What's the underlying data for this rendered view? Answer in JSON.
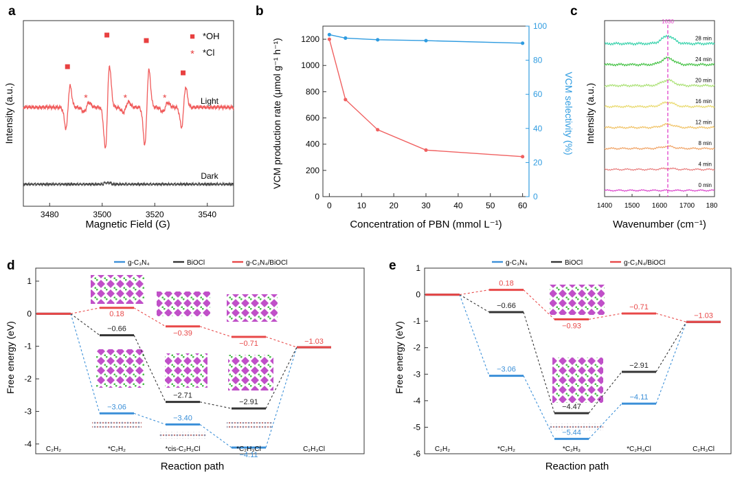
{
  "panels": {
    "a": {
      "letter": "a",
      "xlabel": "Magnetic Field (G)",
      "ylabel": "Intensity (a.u.)",
      "xlim": [
        3470,
        3550
      ],
      "xticks": [
        "3480",
        "3500",
        "3520",
        "3540"
      ],
      "trace_labels": [
        "Light",
        "Dark"
      ],
      "legend": [
        {
          "marker": "■",
          "label": "*OH"
        },
        {
          "marker": "*",
          "label": "*Cl"
        }
      ],
      "colors": {
        "light": "#f05a5a",
        "dark": "#444444"
      }
    },
    "b": {
      "letter": "b",
      "xlabel": "Concentration of PBN (mmol L⁻¹)",
      "ylabel": "VCM production rate (μmol g⁻¹ h⁻¹)",
      "y2label": "VCM selectivity (%)",
      "colors": {
        "rate": "#f06060",
        "selectivity": "#2e9be0"
      }
    },
    "c": {
      "letter": "c",
      "xlabel": "Wavenumber (cm⁻¹)",
      "ylabel": "Intensity (a.u.)",
      "peak_label": "1630",
      "xticks": [
        "1400",
        "1500",
        "1600",
        "1700",
        "180"
      ]
    },
    "d": {
      "letter": "d",
      "ylabel": "Free energy (eV)",
      "xlabel": "Reaction path",
      "path_labels": [
        "C₂H₂",
        "*C₂H₂",
        "*cis-C₂H₂Cl",
        "*C₂H₃Cl",
        "C₂H₃Cl"
      ]
    },
    "e": {
      "letter": "e",
      "ylabel": "Free energy (eV)",
      "xlabel": "Reaction path",
      "path_labels": [
        "C₂H₂",
        "*C₂H₂",
        "*C₂H₃",
        "*C₂H₃Cl",
        "C₂H₃Cl"
      ]
    }
  },
  "chart_data": [
    {
      "type": "line",
      "panel": "a",
      "series": [
        {
          "name": "Light"
        },
        {
          "name": "Dark"
        }
      ],
      "oh_peaks": [
        3487,
        3502,
        3517,
        3531
      ],
      "cl_peaks": [
        3494,
        3509,
        3524
      ]
    },
    {
      "type": "line",
      "panel": "b",
      "x": [
        0,
        5,
        15,
        30,
        60
      ],
      "series": [
        {
          "axis": "left",
          "values": [
            1200,
            740,
            510,
            355,
            305
          ]
        },
        {
          "axis": "right",
          "values": [
            95,
            93,
            92,
            91.5,
            90
          ]
        }
      ],
      "xlim": [
        -2,
        62
      ],
      "ylim": [
        0,
        1300
      ],
      "y2lim": [
        0,
        100
      ],
      "xticks": [
        0,
        10,
        20,
        30,
        40,
        50,
        60
      ],
      "yticks": [
        0,
        200,
        400,
        600,
        800,
        1000,
        1200
      ],
      "y2ticks": [
        0,
        20,
        40,
        60,
        80,
        100
      ]
    },
    {
      "type": "line",
      "panel": "c",
      "series": [
        {
          "name": "0 min",
          "color": "#d838c8"
        },
        {
          "name": "4 min",
          "color": "#e87878"
        },
        {
          "name": "8 min",
          "color": "#f0a060"
        },
        {
          "name": "12 min",
          "color": "#f0c060"
        },
        {
          "name": "16 min",
          "color": "#e8d868"
        },
        {
          "name": "20 min",
          "color": "#a8e070"
        },
        {
          "name": "24 min",
          "color": "#40c040"
        },
        {
          "name": "28 min",
          "color": "#30d0a8"
        }
      ],
      "xlim": [
        1400,
        1800
      ],
      "peak": 1630
    },
    {
      "type": "line",
      "panel": "d",
      "legend": [
        "g-C₃N₄",
        "BiOCl",
        "g-C₃N₄/BiOCl"
      ],
      "ylim": [
        -4.3,
        1.4
      ],
      "yticks": [
        1,
        0,
        -1,
        -2,
        -3,
        -4
      ],
      "series": [
        {
          "name": "g-C₃N₄",
          "color": "#3a8fd8",
          "values": [
            0,
            -3.06,
            -3.4,
            -4.11,
            -1.03
          ],
          "labels": [
            "",
            "−3.06",
            "−3.40",
            "−4.11",
            ""
          ]
        },
        {
          "name": "BiOCl",
          "color": "#333333",
          "values": [
            0,
            -0.66,
            -2.71,
            -2.91,
            -1.03
          ],
          "labels": [
            "",
            "−0.66",
            "−2.71",
            "−2.91",
            ""
          ]
        },
        {
          "name": "g-C₃N₄/BiOCl",
          "color": "#e84848",
          "values": [
            0,
            0.18,
            -0.39,
            -0.71,
            -1.03
          ],
          "labels": [
            "",
            "0.18",
            "−0.39",
            "−0.71",
            "−1.03"
          ]
        }
      ]
    },
    {
      "type": "line",
      "panel": "e",
      "legend": [
        "g-C₃N₄",
        "BiOCl",
        "g-C₃N₄/BiOCl"
      ],
      "ylim": [
        -6,
        1
      ],
      "yticks": [
        1,
        0,
        -1,
        -2,
        -3,
        -4,
        -5,
        -6
      ],
      "series": [
        {
          "name": "g-C₃N₄",
          "color": "#3a8fd8",
          "values": [
            0,
            -3.06,
            -5.44,
            -4.11,
            -1.03
          ],
          "labels": [
            "",
            "−3.06",
            "−5.44",
            "−4.11",
            ""
          ]
        },
        {
          "name": "BiOCl",
          "color": "#333333",
          "values": [
            0,
            -0.66,
            -4.47,
            -2.91,
            -1.03
          ],
          "labels": [
            "",
            "−0.66",
            "−4.47",
            "−2.91",
            ""
          ]
        },
        {
          "name": "g-C₃N₄/BiOCl",
          "color": "#e84848",
          "values": [
            0,
            0.18,
            -0.93,
            -0.71,
            -1.03
          ],
          "labels": [
            "",
            "0.18",
            "−0.93",
            "−0.71",
            "−1.03"
          ]
        }
      ]
    }
  ]
}
